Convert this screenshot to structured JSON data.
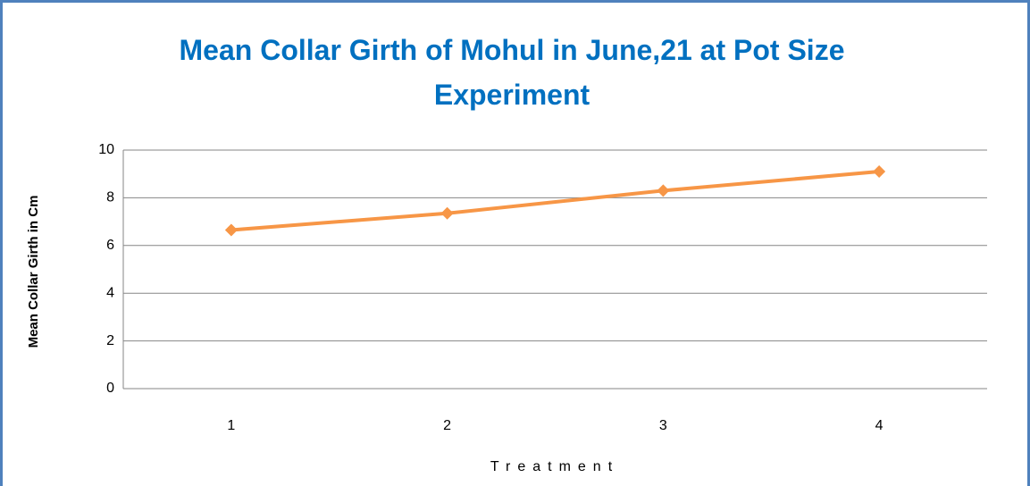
{
  "chart_data": {
    "type": "line",
    "title": "Mean Collar Girth of Mohul in June,21 at Pot Size Experiment",
    "x_label": "Treatment",
    "y_label": "Mean Collar Girth in Cm",
    "categories": [
      "1",
      "2",
      "3",
      "4"
    ],
    "values": [
      6.65,
      7.35,
      8.3,
      9.1
    ],
    "color": "#f79646",
    "ylim": [
      0,
      10
    ],
    "yticks": [
      0,
      2,
      4,
      6,
      8,
      10
    ],
    "grid": true
  }
}
